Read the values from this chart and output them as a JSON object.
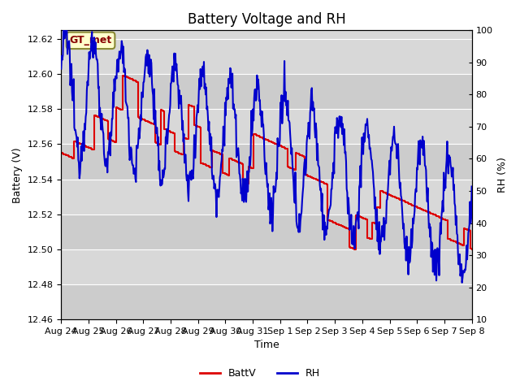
{
  "title": "Battery Voltage and RH",
  "xlabel": "Time",
  "ylabel_left": "Battery (V)",
  "ylabel_right": "RH (%)",
  "ylim_left": [
    12.46,
    12.625
  ],
  "ylim_right": [
    10,
    100
  ],
  "yticks_left": [
    12.46,
    12.48,
    12.5,
    12.52,
    12.54,
    12.56,
    12.58,
    12.6,
    12.62
  ],
  "yticks_right": [
    10,
    20,
    30,
    40,
    50,
    60,
    70,
    80,
    90,
    100
  ],
  "xtick_labels": [
    "Aug 24",
    "Aug 25",
    "Aug 26",
    "Aug 27",
    "Aug 28",
    "Aug 29",
    "Aug 30",
    "Aug 31",
    "Sep 1",
    "Sep 2",
    "Sep 3",
    "Sep 4",
    "Sep 5",
    "Sep 6",
    "Sep 7",
    "Sep 8"
  ],
  "annotation_text": "GT_met",
  "annotation_bg": "#ffffcc",
  "annotation_border": "#888833",
  "annotation_text_color": "#880000",
  "plot_bg_color": "#d8d8d8",
  "battv_color": "#dd0000",
  "rh_color": "#0000cc",
  "legend_battv": "BattV",
  "legend_rh": "RH",
  "title_fontsize": 12,
  "label_fontsize": 9,
  "tick_fontsize": 8,
  "grid_color": "#ffffff",
  "band_color_dark": "#cccccc",
  "band_color_light": "#d8d8d8"
}
